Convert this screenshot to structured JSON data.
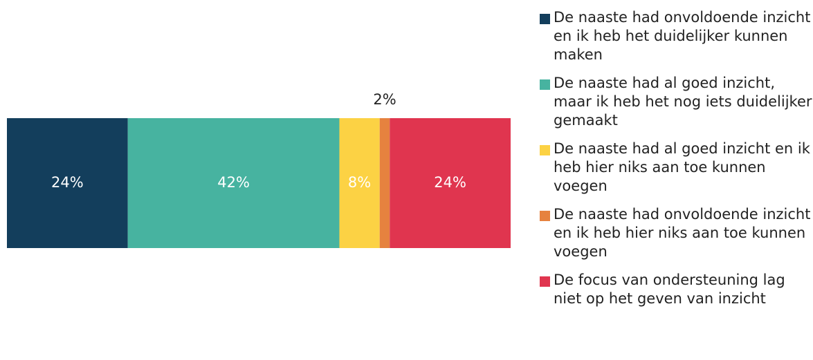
{
  "chart_data": {
    "type": "stacked-bar",
    "series": [
      {
        "name": "De naaste had onvoldoende inzicht en ik heb het duidelijker kunnen maken",
        "color": "#133e5c",
        "values": [
          24
        ],
        "value_labels": [
          "24%"
        ]
      },
      {
        "name": "De naaste had al goed inzicht, maar ik heb het nog iets duidelijker gemaakt",
        "color": "#47b3a0",
        "values": [
          42
        ],
        "value_labels": [
          "42%"
        ]
      },
      {
        "name": "De naaste had al goed inzicht en ik heb hier niks aan toe kunnen voegen",
        "color": "#fcd244",
        "values": [
          8
        ],
        "value_labels": [
          "8%"
        ]
      },
      {
        "name": "De naaste had onvoldoende inzicht en ik heb hier niks aan toe kunnen voegen",
        "color": "#e6823f",
        "values": [
          2
        ],
        "value_labels": [
          "2%"
        ]
      },
      {
        "name": "De focus van ondersteuning lag niet op het geven van inzicht",
        "color": "#e0354f",
        "values": [
          24
        ],
        "value_labels": [
          "24%"
        ]
      }
    ],
    "xlim": [
      0,
      100
    ],
    "legend": "right"
  }
}
